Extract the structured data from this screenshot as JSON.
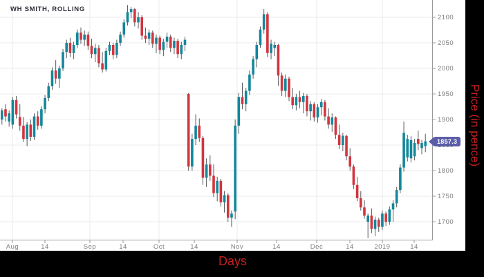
{
  "title": "WH SMITH, ROLLING",
  "axes": {
    "x_label": "Days",
    "y_label": "Price (in pence)",
    "y_ticks": [
      2100,
      2050,
      2000,
      1950,
      1900,
      1850,
      1800,
      1750,
      1700
    ],
    "x_ticks": [
      {
        "label": "Aug",
        "x": 18,
        "month": true
      },
      {
        "label": "14",
        "x": 65,
        "month": false
      },
      {
        "label": "Sep",
        "x": 130,
        "month": true
      },
      {
        "label": "14",
        "x": 178,
        "month": false
      },
      {
        "label": "Oct",
        "x": 230,
        "month": true
      },
      {
        "label": "14",
        "x": 281,
        "month": false
      },
      {
        "label": "Nov",
        "x": 343,
        "month": true
      },
      {
        "label": "14",
        "x": 400,
        "month": false
      },
      {
        "label": "Dec",
        "x": 458,
        "month": true
      },
      {
        "label": "14",
        "x": 506,
        "month": false
      },
      {
        "label": "2019",
        "x": 553,
        "month": true
      },
      {
        "label": "14",
        "x": 599,
        "month": false
      }
    ]
  },
  "last_price": {
    "value": "1857.3"
  },
  "colors": {
    "up": "#12879b",
    "down": "#d2353f",
    "wick": "#54585c",
    "grid": "#ebebeb",
    "axis_border": "#9b9b9b",
    "tick_text": "#7d7d7d",
    "axis_title_red": "#c42020",
    "badge": "#5a5ea8",
    "title_text": "#2e2e3a"
  },
  "chart_data": {
    "type": "candlestick",
    "title": "WH SMITH, ROLLING",
    "xlabel": "Days",
    "ylabel": "Price (in pence)",
    "ylim": [
      1650,
      2135
    ],
    "grid": true,
    "x_tick_labels": [
      "Aug",
      "14",
      "Sep",
      "14",
      "Oct",
      "14",
      "Nov",
      "14",
      "Dec",
      "14",
      "2019",
      "14"
    ],
    "last_close": 1857.3,
    "candles_ohlc": [
      [
        1900,
        1922,
        1890,
        1918
      ],
      [
        1920,
        1930,
        1896,
        1906
      ],
      [
        1896,
        1918,
        1886,
        1912
      ],
      [
        1890,
        1944,
        1882,
        1938
      ],
      [
        1938,
        1946,
        1902,
        1910
      ],
      [
        1905,
        1930,
        1878,
        1888
      ],
      [
        1888,
        1905,
        1856,
        1862
      ],
      [
        1862,
        1895,
        1848,
        1890
      ],
      [
        1890,
        1900,
        1858,
        1866
      ],
      [
        1866,
        1912,
        1860,
        1906
      ],
      [
        1906,
        1916,
        1880,
        1888
      ],
      [
        1888,
        1926,
        1882,
        1920
      ],
      [
        1920,
        1948,
        1912,
        1942
      ],
      [
        1942,
        1972,
        1936,
        1965
      ],
      [
        1965,
        2002,
        1958,
        1996
      ],
      [
        1996,
        2016,
        1970,
        1980
      ],
      [
        1980,
        2005,
        1962,
        2000
      ],
      [
        2000,
        2038,
        1995,
        2032
      ],
      [
        2032,
        2056,
        2020,
        2050
      ],
      [
        2050,
        2060,
        2022,
        2030
      ],
      [
        2030,
        2052,
        2018,
        2046
      ],
      [
        2046,
        2076,
        2040,
        2070
      ],
      [
        2070,
        2080,
        2048,
        2056
      ],
      [
        2056,
        2074,
        2044,
        2066
      ],
      [
        2066,
        2072,
        2036,
        2044
      ],
      [
        2044,
        2058,
        2020,
        2028
      ],
      [
        2028,
        2048,
        2012,
        2040
      ],
      [
        2040,
        2046,
        2002,
        2010
      ],
      [
        2010,
        2032,
        1992,
        1998
      ],
      [
        1998,
        2040,
        1994,
        2034
      ],
      [
        2034,
        2052,
        2026,
        2046
      ],
      [
        2046,
        2050,
        2018,
        2026
      ],
      [
        2026,
        2056,
        2020,
        2050
      ],
      [
        2050,
        2072,
        2044,
        2066
      ],
      [
        2066,
        2096,
        2060,
        2090
      ],
      [
        2090,
        2124,
        2084,
        2110
      ],
      [
        2110,
        2120,
        2098,
        2116
      ],
      [
        2116,
        2118,
        2082,
        2090
      ],
      [
        2090,
        2110,
        2078,
        2100
      ],
      [
        2100,
        2104,
        2056,
        2064
      ],
      [
        2064,
        2080,
        2050,
        2058
      ],
      [
        2058,
        2076,
        2046,
        2070
      ],
      [
        2070,
        2074,
        2040,
        2048
      ],
      [
        2048,
        2066,
        2030,
        2060
      ],
      [
        2060,
        2064,
        2028,
        2036
      ],
      [
        2036,
        2058,
        2024,
        2052
      ],
      [
        2052,
        2070,
        2040,
        2062
      ],
      [
        2062,
        2066,
        2032,
        2040
      ],
      [
        2040,
        2060,
        2028,
        2054
      ],
      [
        2054,
        2058,
        2020,
        2028
      ],
      [
        2028,
        2052,
        2018,
        2046
      ],
      [
        2046,
        2062,
        2034,
        2056
      ],
      [
        1950,
        1952,
        1800,
        1808
      ],
      [
        1808,
        1872,
        1800,
        1862
      ],
      [
        1862,
        1910,
        1850,
        1888
      ],
      [
        1888,
        1902,
        1856,
        1864
      ],
      [
        1864,
        1868,
        1772,
        1786
      ],
      [
        1786,
        1824,
        1768,
        1812
      ],
      [
        1812,
        1830,
        1780,
        1790
      ],
      [
        1790,
        1812,
        1748,
        1756
      ],
      [
        1756,
        1788,
        1740,
        1780
      ],
      [
        1780,
        1784,
        1730,
        1738
      ],
      [
        1738,
        1760,
        1718,
        1752
      ],
      [
        1752,
        1756,
        1700,
        1708
      ],
      [
        1708,
        1722,
        1690,
        1716
      ],
      [
        1720,
        1900,
        1705,
        1888
      ],
      [
        1888,
        1952,
        1872,
        1944
      ],
      [
        1944,
        1972,
        1920,
        1930
      ],
      [
        1930,
        1962,
        1916,
        1956
      ],
      [
        1956,
        1996,
        1948,
        1988
      ],
      [
        1988,
        2024,
        1980,
        2018
      ],
      [
        2018,
        2052,
        2002,
        2046
      ],
      [
        2046,
        2082,
        2040,
        2076
      ],
      [
        2076,
        2116,
        2068,
        2106
      ],
      [
        2106,
        2110,
        2022,
        2030
      ],
      [
        2030,
        2056,
        2018,
        2048
      ],
      [
        2040,
        2052,
        2024,
        2046
      ],
      [
        2046,
        2048,
        1966,
        1986
      ],
      [
        1986,
        1992,
        1946,
        1956
      ],
      [
        1956,
        1988,
        1944,
        1980
      ],
      [
        1980,
        1984,
        1936,
        1944
      ],
      [
        1944,
        1962,
        1920,
        1928
      ],
      [
        1928,
        1950,
        1918,
        1944
      ],
      [
        1944,
        1956,
        1922,
        1934
      ],
      [
        1934,
        1952,
        1912,
        1946
      ],
      [
        1946,
        1950,
        1906,
        1916
      ],
      [
        1916,
        1936,
        1898,
        1930
      ],
      [
        1930,
        1934,
        1896,
        1904
      ],
      [
        1904,
        1930,
        1894,
        1924
      ],
      [
        1924,
        1940,
        1908,
        1934
      ],
      [
        1934,
        1938,
        1898,
        1906
      ],
      [
        1906,
        1922,
        1882,
        1890
      ],
      [
        1890,
        1912,
        1876,
        1904
      ],
      [
        1904,
        1906,
        1862,
        1870
      ],
      [
        1870,
        1890,
        1842,
        1850
      ],
      [
        1850,
        1874,
        1838,
        1868
      ],
      [
        1868,
        1870,
        1820,
        1828
      ],
      [
        1828,
        1844,
        1800,
        1808
      ],
      [
        1808,
        1812,
        1764,
        1772
      ],
      [
        1772,
        1788,
        1740,
        1746
      ],
      [
        1746,
        1760,
        1722,
        1728
      ],
      [
        1728,
        1742,
        1706,
        1712
      ],
      [
        1700,
        1716,
        1668,
        1712
      ],
      [
        1712,
        1726,
        1678,
        1686
      ],
      [
        1686,
        1710,
        1672,
        1704
      ],
      [
        1704,
        1708,
        1680,
        1690
      ],
      [
        1690,
        1722,
        1684,
        1716
      ],
      [
        1716,
        1720,
        1692,
        1700
      ],
      [
        1700,
        1730,
        1694,
        1724
      ],
      [
        1724,
        1742,
        1700,
        1736
      ],
      [
        1736,
        1768,
        1728,
        1762
      ],
      [
        1762,
        1812,
        1756,
        1806
      ],
      [
        1806,
        1896,
        1798,
        1874
      ],
      [
        1826,
        1870,
        1818,
        1862
      ],
      [
        1824,
        1868,
        1816,
        1860
      ],
      [
        1828,
        1862,
        1820,
        1854
      ],
      [
        1862,
        1878,
        1840,
        1852
      ],
      [
        1844,
        1860,
        1832,
        1854
      ],
      [
        1848,
        1872,
        1836,
        1857.3
      ]
    ]
  }
}
